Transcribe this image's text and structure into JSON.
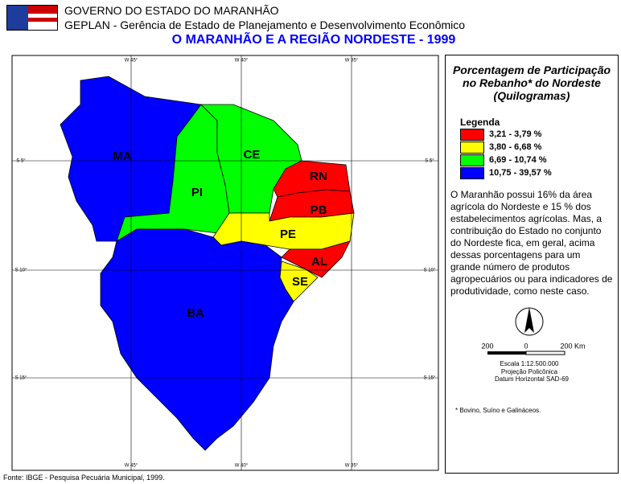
{
  "header": {
    "org": "GOVERNO DO ESTADO DO MARANHÃO",
    "dept": "GEPLAN - Gerência de Estado de Planejamento e Desenvolvimento Econômico",
    "title": "O MARANHÃO E A REGIÃO NORDESTE - 1999"
  },
  "map": {
    "meridians": [
      "W 45°",
      "W 40°",
      "W 35°"
    ],
    "parallels": [
      "S 5°",
      "S 10°",
      "S 15°"
    ],
    "states": [
      {
        "label": "MA",
        "color": "#0000ff"
      },
      {
        "label": "PI",
        "color": "#00ff00"
      },
      {
        "label": "CE",
        "color": "#00ff00"
      },
      {
        "label": "RN",
        "color": "#ff0000"
      },
      {
        "label": "PB",
        "color": "#ff0000"
      },
      {
        "label": "PE",
        "color": "#ffff00"
      },
      {
        "label": "AL",
        "color": "#ff0000"
      },
      {
        "label": "SE",
        "color": "#ffff00"
      },
      {
        "label": "BA",
        "color": "#0000ff"
      }
    ]
  },
  "panel": {
    "title": "Porcentagem de Participação no Rebanho* do Nordeste (Quilogramas)",
    "legend_title": "Legenda",
    "legend": [
      {
        "label": "3,21 - 3,79 %",
        "color": "#ff0000"
      },
      {
        "label": "3,80 - 6,68 %",
        "color": "#ffff00"
      },
      {
        "label": "6,69 - 10,74 %",
        "color": "#00ff00"
      },
      {
        "label": "10,75 - 39,57 %",
        "color": "#0000ff"
      }
    ],
    "description": "O Maranhão possui 16% da área agrícola do Nordeste e 15 % dos estabelecimentos agrícolas. Mas, a contribuição do Estado no conjunto do Nordeste fica, em geral, acima dessas porcentagens para um grande número de produtos agropecuários ou para indicadores de produtividade, como neste caso.",
    "scale_labels": [
      "200",
      "0",
      "200 Km"
    ],
    "scale": "Escala 1:12.500.000",
    "projection": "Projeção Policônica",
    "datum": "Datum Horizontal SAD-69",
    "footnote": "* Bovino, Suíno e Galináceos."
  },
  "source": "Fonte: IBGE - Pesquisa Pecuária Municipal, 1999."
}
